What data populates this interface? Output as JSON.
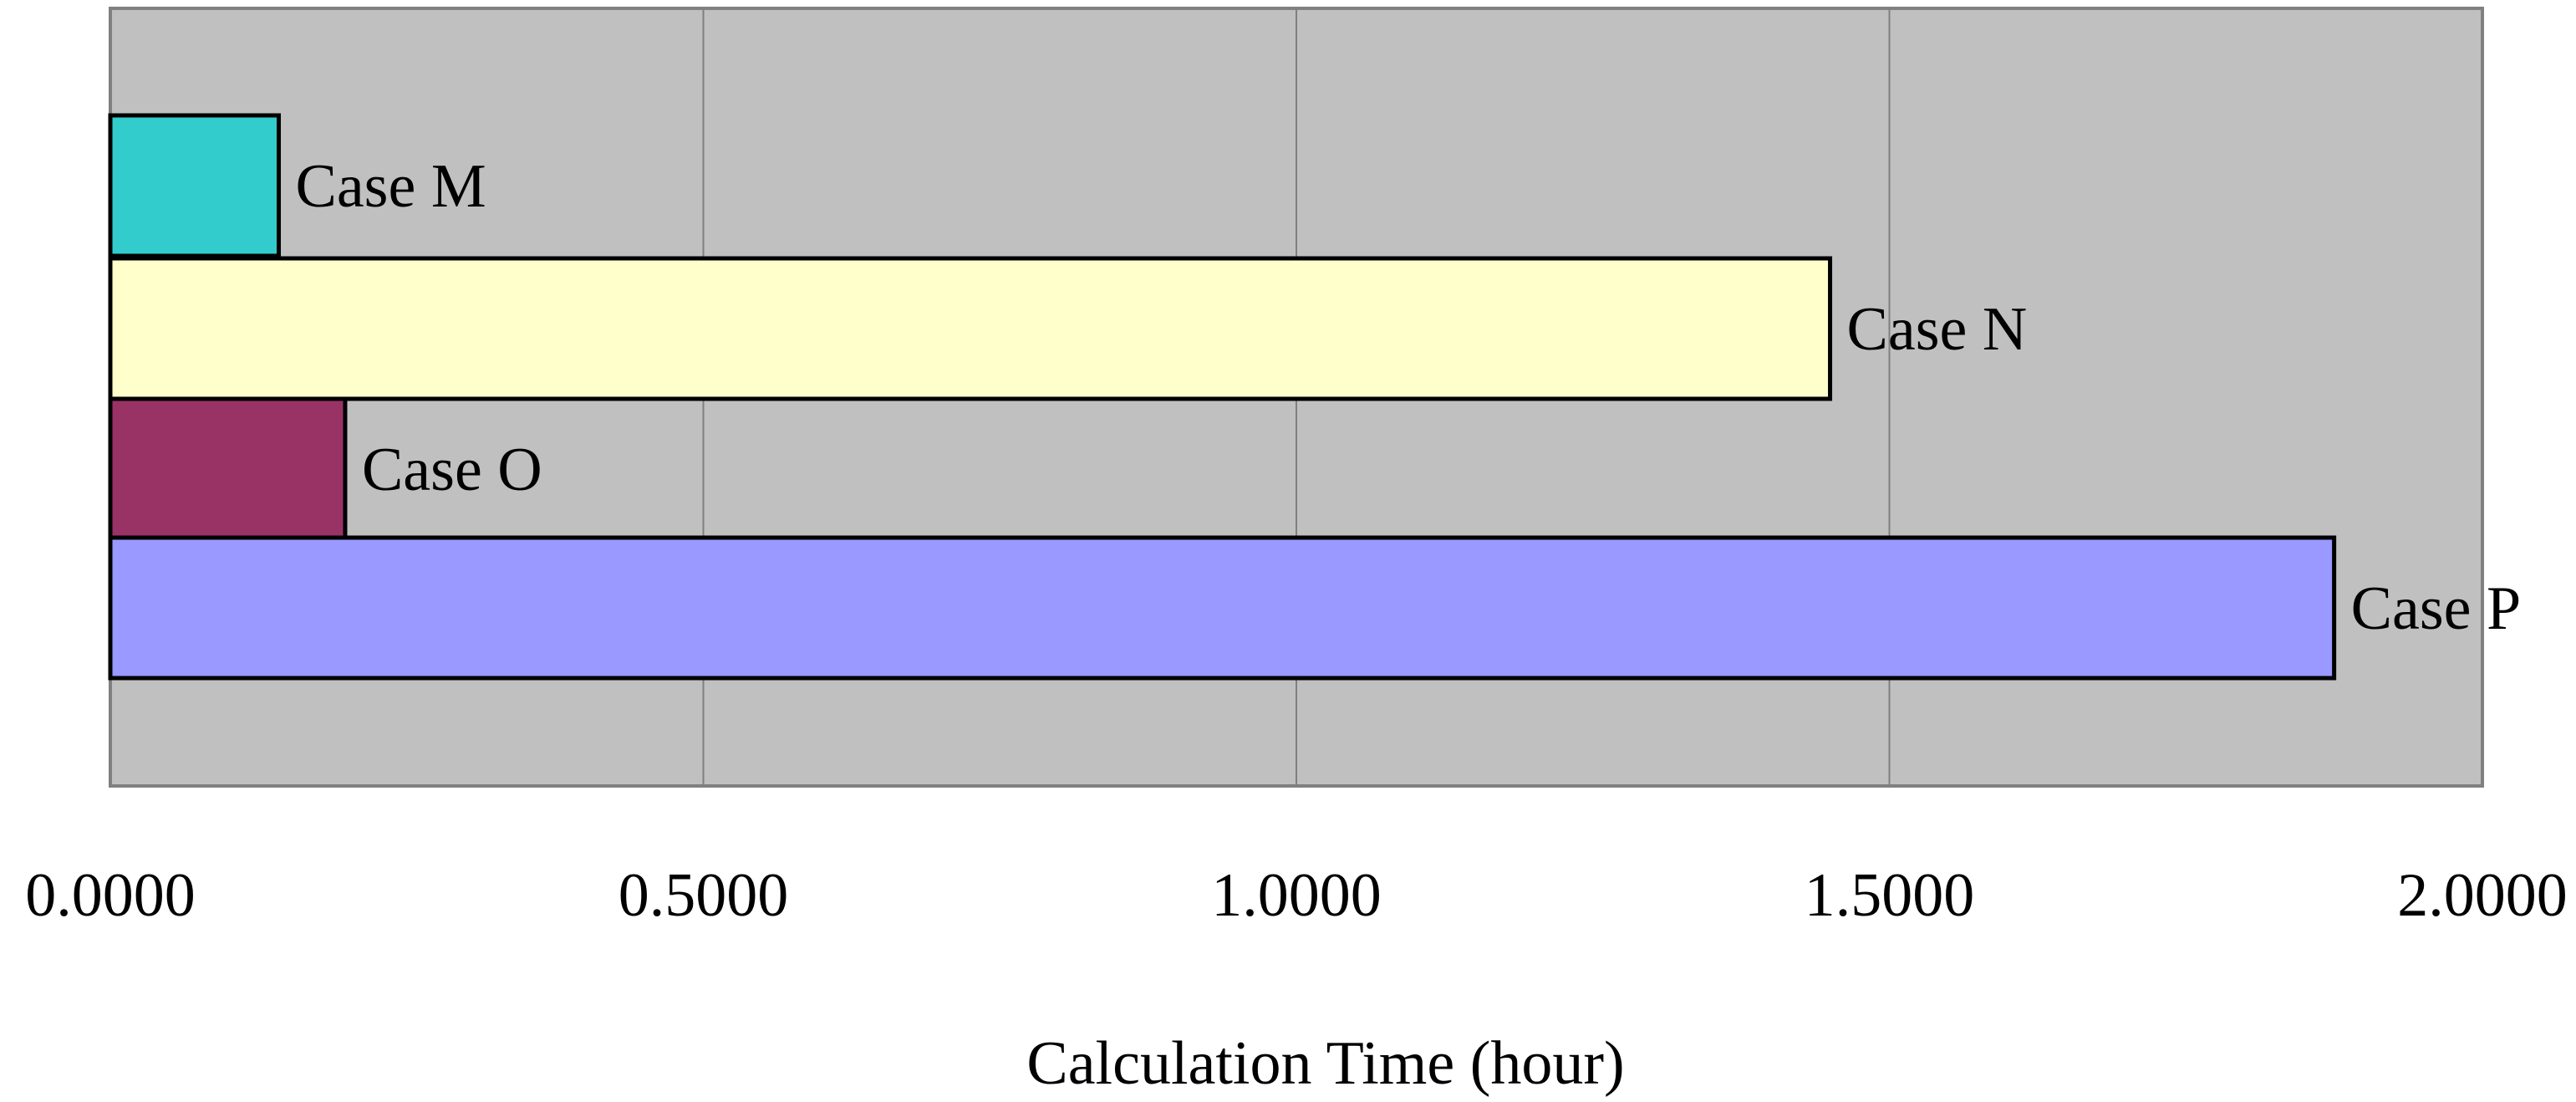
{
  "chart_data": {
    "type": "bar",
    "orientation": "horizontal",
    "categories": [
      "Case M",
      "Case N",
      "Case O",
      "Case P"
    ],
    "values": [
      0.142,
      1.45,
      0.198,
      1.875
    ],
    "xlabel": "Calculation Time (hour)",
    "xlim": [
      0,
      2
    ],
    "xticks": [
      0,
      0.5,
      1,
      1.5,
      2
    ],
    "xtick_labels": [
      "0.0000",
      "0.5000",
      "1.0000",
      "1.5000",
      "2.0000"
    ],
    "grid": "vertical",
    "legend": "none",
    "colors": {
      "plot_background": "#c0c0c0",
      "gridline": "#7f7f7f",
      "bar_outline": "#000000",
      "bars": [
        "#33cccc",
        "#ffffcc",
        "#993366",
        "#9999ff"
      ]
    }
  }
}
